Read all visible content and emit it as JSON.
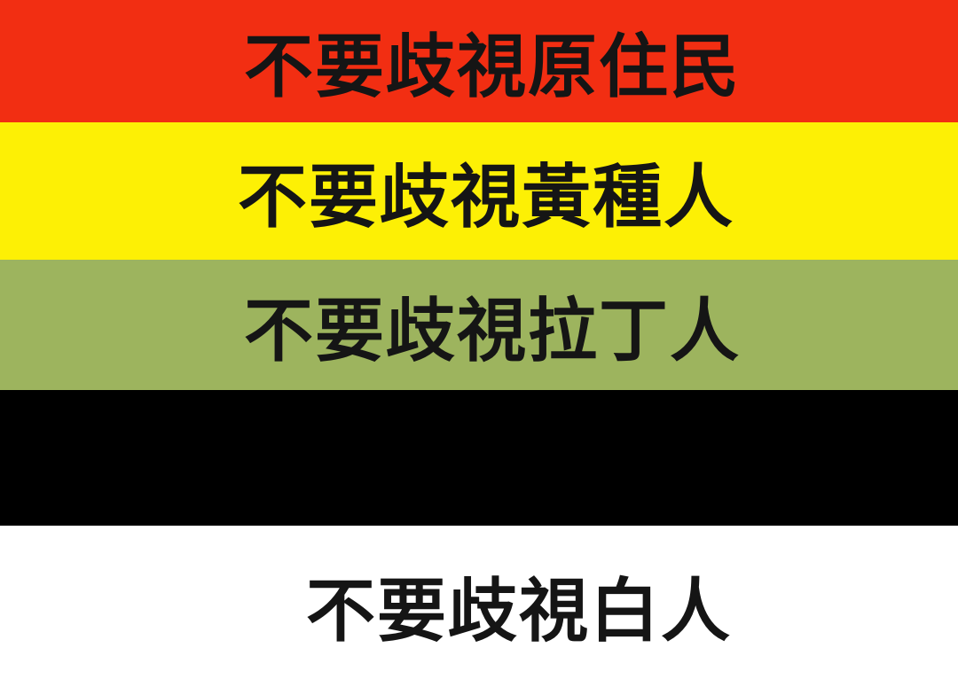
{
  "bands": [
    {
      "color": "#f22e12",
      "text": "不要歧視原住民"
    },
    {
      "color": "#fdf005",
      "text": "不要歧視黃種人"
    },
    {
      "color": "#9db45e",
      "text": "不要歧視拉丁人"
    },
    {
      "color": "#000000",
      "text": ""
    },
    {
      "color": "#ffffff",
      "text": "不要歧視白人"
    }
  ]
}
